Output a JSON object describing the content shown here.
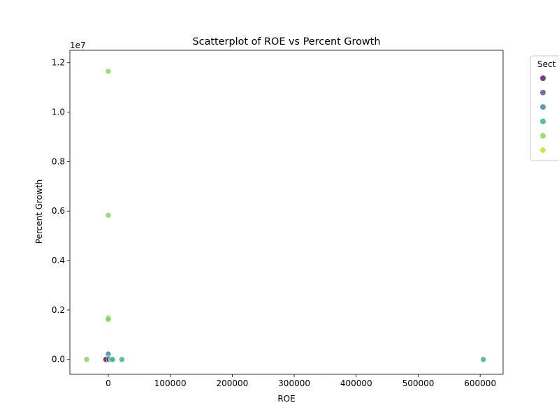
{
  "chart_data": {
    "type": "scatter",
    "title": "Scatterplot of ROE vs Percent Growth",
    "xlabel": "ROE",
    "ylabel": "Percent Growth",
    "y_offset_text": "1e7",
    "xlim": [
      -62000,
      637000
    ],
    "ylim": [
      -0.06,
      1.25
    ],
    "y_multiplier": 10000000,
    "x_ticks": [
      0,
      100000,
      200000,
      300000,
      400000,
      500000,
      600000
    ],
    "y_ticks": [
      0.0,
      0.2,
      0.4,
      0.6,
      0.8,
      1.0,
      1.2
    ],
    "x_tick_labels": [
      "0",
      "100000",
      "200000",
      "300000",
      "400000",
      "500000",
      "600000"
    ],
    "y_tick_labels": [
      "0.0",
      "0.2",
      "0.4",
      "0.6",
      "0.8",
      "1.0",
      "1.2"
    ],
    "grid": false,
    "legend": {
      "title": "Sect",
      "placement": "right, outside plot (clipped)",
      "colors": [
        "#440154",
        "#414487",
        "#2a788e",
        "#22a884",
        "#7ad151",
        "#bddf26"
      ]
    },
    "points": [
      {
        "x": 0,
        "y": 1.165,
        "color": "#7ad151"
      },
      {
        "x": 0,
        "y": 0.583,
        "color": "#7ad151"
      },
      {
        "x": 0,
        "y": 0.168,
        "color": "#7ad151"
      },
      {
        "x": 0,
        "y": 0.162,
        "color": "#7ad151"
      },
      {
        "x": 0,
        "y": 0.022,
        "color": "#2a788e"
      },
      {
        "x": 0,
        "y": 0.005,
        "color": "#2a788e"
      },
      {
        "x": -2000,
        "y": 0.0,
        "color": "#7ad151"
      },
      {
        "x": -4000,
        "y": 0.0,
        "color": "#440154"
      },
      {
        "x": 1000,
        "y": 0.0,
        "color": "#414487"
      },
      {
        "x": 5000,
        "y": 0.0,
        "color": "#7ad151"
      },
      {
        "x": 7000,
        "y": 0.0,
        "color": "#22a884"
      },
      {
        "x": -35000,
        "y": 0.0,
        "color": "#7ad151"
      },
      {
        "x": 22000,
        "y": 0.0,
        "color": "#22a884"
      },
      {
        "x": 605000,
        "y": 0.0,
        "color": "#22a884"
      }
    ]
  }
}
